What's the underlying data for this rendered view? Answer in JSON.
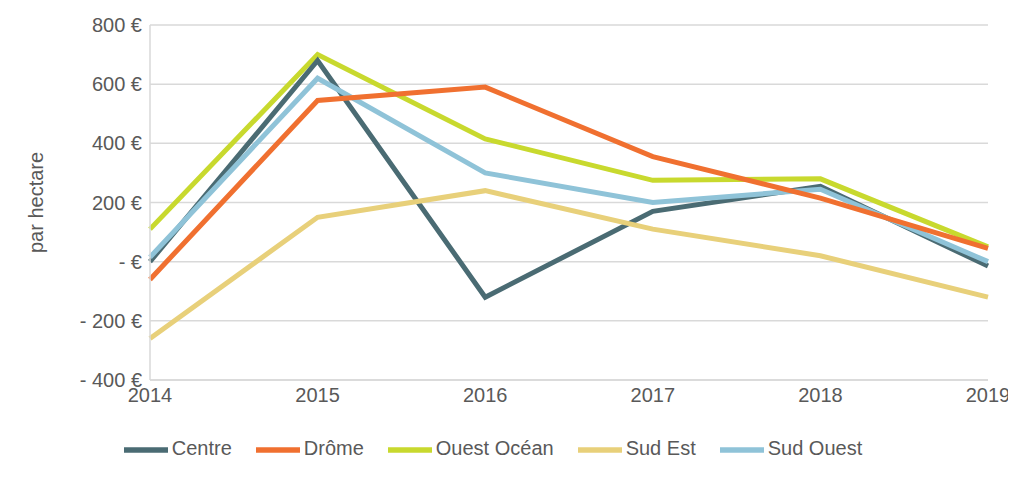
{
  "chart_data": {
    "type": "line",
    "y_label": "par hectare",
    "categories": [
      "2014",
      "2015",
      "2016",
      "2017",
      "2018",
      "2019"
    ],
    "series": [
      {
        "name": "Ouest Océan",
        "color": "#c8d92e",
        "values": [
          110,
          700,
          415,
          275,
          280,
          50
        ]
      },
      {
        "name": "Centre",
        "color": "#4a6b73",
        "values": [
          0,
          680,
          -120,
          170,
          255,
          -15
        ]
      },
      {
        "name": "Sud Ouest",
        "color": "#8fc3d8",
        "values": [
          15,
          620,
          300,
          200,
          245,
          0
        ]
      },
      {
        "name": "Sud Est",
        "color": "#e8d07a",
        "values": [
          -260,
          150,
          240,
          110,
          20,
          -120
        ]
      },
      {
        "name": "Drôme",
        "color": "#f07030",
        "values": [
          -60,
          545,
          590,
          355,
          215,
          45
        ]
      }
    ],
    "ylim": [
      -400,
      800
    ],
    "yticks": [
      {
        "value": -400,
        "label": "- 400 €"
      },
      {
        "value": -200,
        "label": "- 200 €"
      },
      {
        "value": 0,
        "label": "-  €"
      },
      {
        "value": 200,
        "label": "200 €"
      },
      {
        "value": 400,
        "label": "400 €"
      },
      {
        "value": 600,
        "label": "600 €"
      },
      {
        "value": 800,
        "label": "800 €"
      }
    ],
    "grid": true,
    "legend": "bottom"
  }
}
